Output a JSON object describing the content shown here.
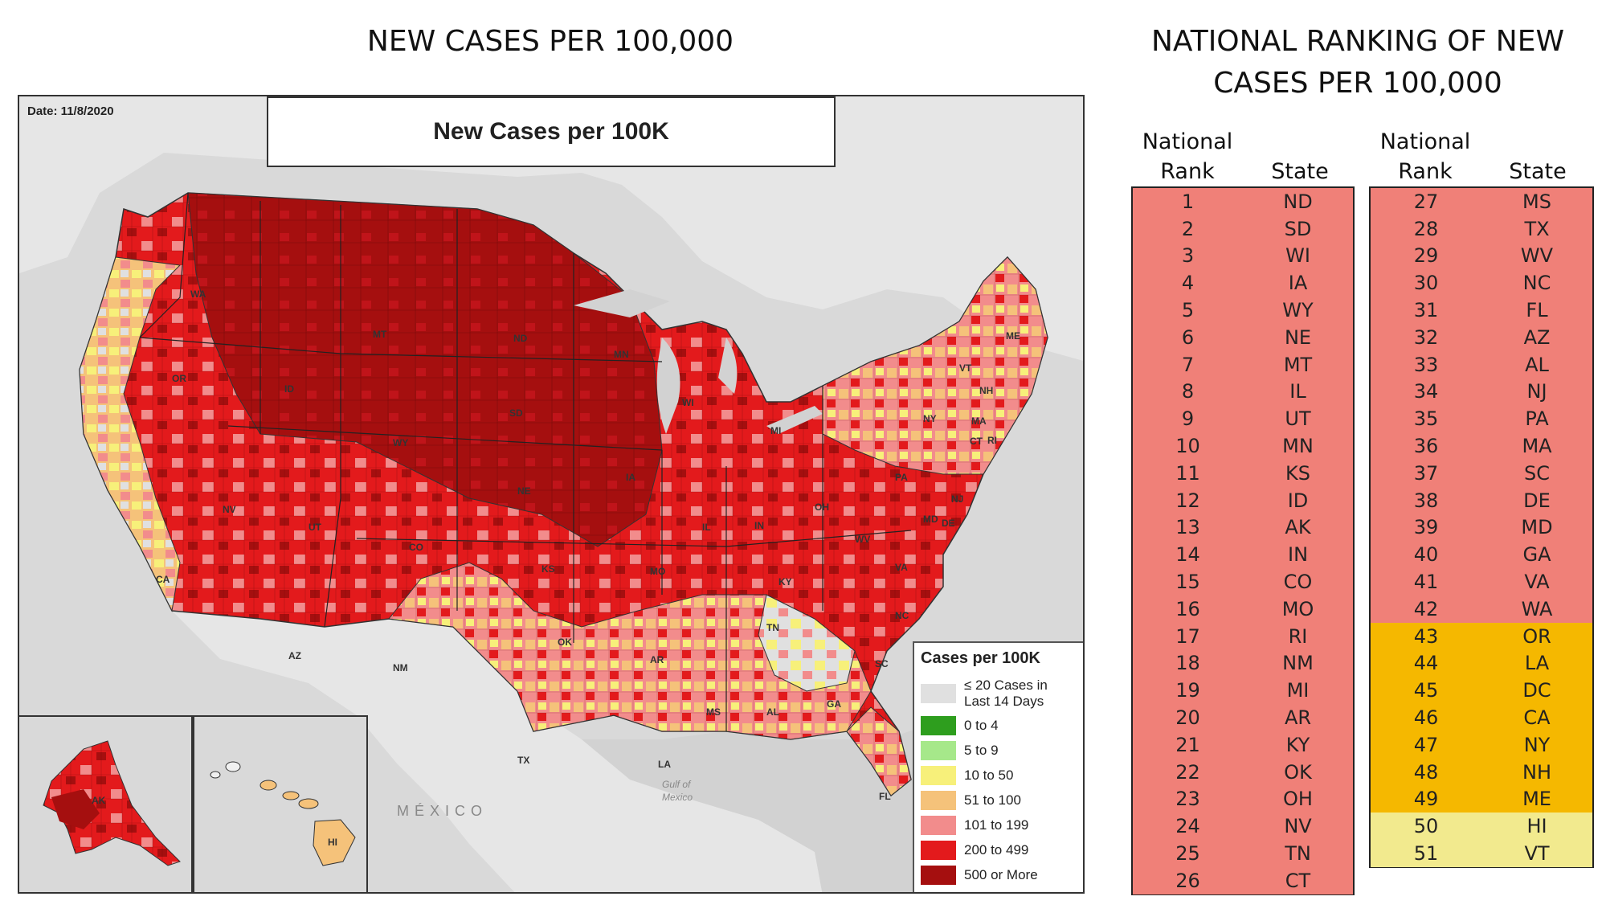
{
  "left_title": "NEW CASES PER 100,000",
  "right_title": [
    "NATIONAL RANKING OF NEW",
    "CASES PER 100,000"
  ],
  "map": {
    "date": "Date: 11/8/2020",
    "title": "New Cases per 100K",
    "country_label": "MÉXICO",
    "gulf_label": [
      "Gulf of",
      "Mexico"
    ],
    "legend": {
      "title": "Cases per 100K",
      "items": [
        {
          "label": "≤ 20 Cases in Last 14 Days",
          "color": "#e0e0e0"
        },
        {
          "label": "0 to 4",
          "color": "#2e9e1e"
        },
        {
          "label": "5 to 9",
          "color": "#a6e88a"
        },
        {
          "label": "10 to 50",
          "color": "#f7f07a"
        },
        {
          "label": "51 to 100",
          "color": "#f5c27a"
        },
        {
          "label": "101 to 199",
          "color": "#f28c8c"
        },
        {
          "label": "200 to 499",
          "color": "#e31a1c"
        },
        {
          "label": "500 or More",
          "color": "#a50f0f"
        }
      ]
    },
    "state_labels": [
      "WA",
      "OR",
      "CA",
      "NV",
      "ID",
      "MT",
      "WY",
      "UT",
      "AZ",
      "CO",
      "NM",
      "ND",
      "SD",
      "NE",
      "KS",
      "OK",
      "TX",
      "MN",
      "IA",
      "MO",
      "AR",
      "LA",
      "WI",
      "IL",
      "MS",
      "MI",
      "IN",
      "KY",
      "TN",
      "AL",
      "OH",
      "GA",
      "FL",
      "SC",
      "NC",
      "VA",
      "WV",
      "PA",
      "NY",
      "MD",
      "DE",
      "NJ",
      "CT",
      "RI",
      "MA",
      "VT",
      "NH",
      "ME",
      "AK",
      "HI"
    ]
  },
  "ranking": {
    "header_rank": [
      "National",
      "Rank"
    ],
    "header_state": "State",
    "colors": {
      "red": "#f08078",
      "orange": "#f5b800",
      "yellow": "#f2ea8e"
    },
    "rows": [
      {
        "rank": "1",
        "state": "ND",
        "tier": "red"
      },
      {
        "rank": "2",
        "state": "SD",
        "tier": "red"
      },
      {
        "rank": "3",
        "state": "WI",
        "tier": "red"
      },
      {
        "rank": "4",
        "state": "IA",
        "tier": "red"
      },
      {
        "rank": "5",
        "state": "WY",
        "tier": "red"
      },
      {
        "rank": "6",
        "state": "NE",
        "tier": "red"
      },
      {
        "rank": "7",
        "state": "MT",
        "tier": "red"
      },
      {
        "rank": "8",
        "state": "IL",
        "tier": "red"
      },
      {
        "rank": "9",
        "state": "UT",
        "tier": "red"
      },
      {
        "rank": "10",
        "state": "MN",
        "tier": "red"
      },
      {
        "rank": "11",
        "state": "KS",
        "tier": "red"
      },
      {
        "rank": "12",
        "state": "ID",
        "tier": "red"
      },
      {
        "rank": "13",
        "state": "AK",
        "tier": "red"
      },
      {
        "rank": "14",
        "state": "IN",
        "tier": "red"
      },
      {
        "rank": "15",
        "state": "CO",
        "tier": "red"
      },
      {
        "rank": "16",
        "state": "MO",
        "tier": "red"
      },
      {
        "rank": "17",
        "state": "RI",
        "tier": "red"
      },
      {
        "rank": "18",
        "state": "NM",
        "tier": "red"
      },
      {
        "rank": "19",
        "state": "MI",
        "tier": "red"
      },
      {
        "rank": "20",
        "state": "AR",
        "tier": "red"
      },
      {
        "rank": "21",
        "state": "KY",
        "tier": "red"
      },
      {
        "rank": "22",
        "state": "OK",
        "tier": "red"
      },
      {
        "rank": "23",
        "state": "OH",
        "tier": "red"
      },
      {
        "rank": "24",
        "state": "NV",
        "tier": "red"
      },
      {
        "rank": "25",
        "state": "TN",
        "tier": "red"
      },
      {
        "rank": "26",
        "state": "CT",
        "tier": "red"
      },
      {
        "rank": "27",
        "state": "MS",
        "tier": "red"
      },
      {
        "rank": "28",
        "state": "TX",
        "tier": "red"
      },
      {
        "rank": "29",
        "state": "WV",
        "tier": "red"
      },
      {
        "rank": "30",
        "state": "NC",
        "tier": "red"
      },
      {
        "rank": "31",
        "state": "FL",
        "tier": "red"
      },
      {
        "rank": "32",
        "state": "AZ",
        "tier": "red"
      },
      {
        "rank": "33",
        "state": "AL",
        "tier": "red"
      },
      {
        "rank": "34",
        "state": "NJ",
        "tier": "red"
      },
      {
        "rank": "35",
        "state": "PA",
        "tier": "red"
      },
      {
        "rank": "36",
        "state": "MA",
        "tier": "red"
      },
      {
        "rank": "37",
        "state": "SC",
        "tier": "red"
      },
      {
        "rank": "38",
        "state": "DE",
        "tier": "red"
      },
      {
        "rank": "39",
        "state": "MD",
        "tier": "red"
      },
      {
        "rank": "40",
        "state": "GA",
        "tier": "red"
      },
      {
        "rank": "41",
        "state": "VA",
        "tier": "red"
      },
      {
        "rank": "42",
        "state": "WA",
        "tier": "red"
      },
      {
        "rank": "43",
        "state": "OR",
        "tier": "orange"
      },
      {
        "rank": "44",
        "state": "LA",
        "tier": "orange"
      },
      {
        "rank": "45",
        "state": "DC",
        "tier": "orange"
      },
      {
        "rank": "46",
        "state": "CA",
        "tier": "orange"
      },
      {
        "rank": "47",
        "state": "NY",
        "tier": "orange"
      },
      {
        "rank": "48",
        "state": "NH",
        "tier": "orange"
      },
      {
        "rank": "49",
        "state": "ME",
        "tier": "orange"
      },
      {
        "rank": "50",
        "state": "HI",
        "tier": "yellow"
      },
      {
        "rank": "51",
        "state": "VT",
        "tier": "yellow"
      }
    ]
  }
}
